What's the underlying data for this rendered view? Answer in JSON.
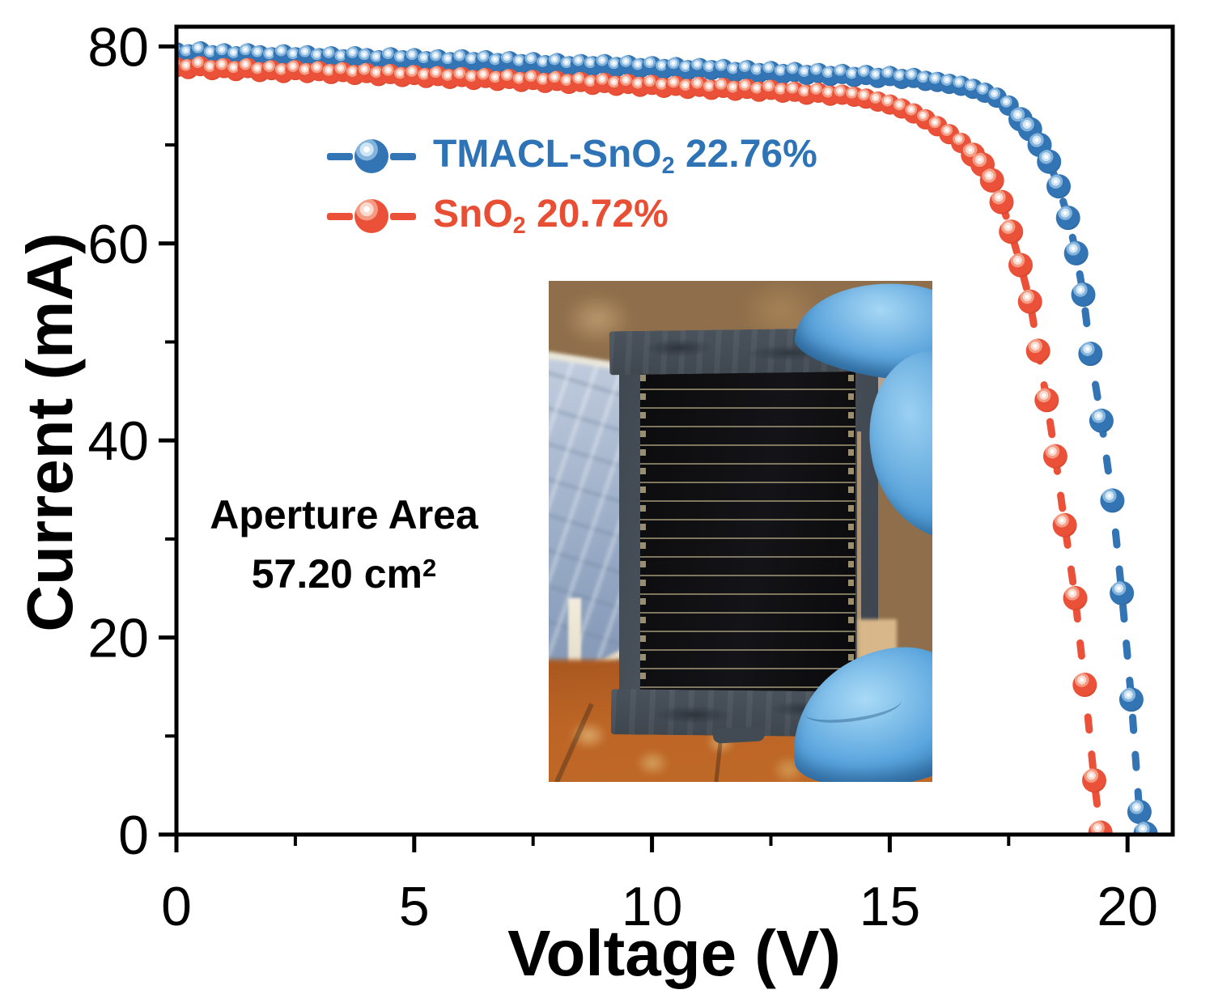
{
  "figure": {
    "background": "#ffffff",
    "axis_color": "#000000"
  },
  "legend": {
    "items": [
      {
        "pre": "TMACL-SnO",
        "sub": "2",
        "post": " 22.76%",
        "color": "#2d73b6"
      },
      {
        "pre": "SnO",
        "sub": "2",
        "post": " 20.72%",
        "color": "#e84e33"
      }
    ]
  },
  "annotation": {
    "line1": "Aperture Area",
    "line2_pre": "57.20 cm",
    "line2_sup": "2"
  },
  "chart_data": {
    "type": "line",
    "title": "",
    "xlabel": "Voltage (V)",
    "ylabel": "Current (mA)",
    "xlim": [
      0,
      20.95
    ],
    "ylim": [
      0,
      82
    ],
    "x_ticks": [
      0,
      5,
      10,
      15,
      20
    ],
    "x_minor_ticks": [
      2.5,
      7.5,
      12.5,
      17.5
    ],
    "y_ticks": [
      0,
      20,
      40,
      60,
      80
    ],
    "y_minor_ticks": [
      10,
      30,
      50,
      70
    ],
    "grid": false,
    "legend_position": "upper-left-inside",
    "series": [
      {
        "name": "TMACL-SnO2 22.76%",
        "color": "#3374b4",
        "shades": {
          "light2": "#cfe4f4",
          "light1": "#84b4dc",
          "base": "#3374b4",
          "dark": "#2a5c92"
        },
        "flat": [
          [
            0,
            79.4
          ],
          [
            0.25,
            79.2
          ],
          [
            0.5,
            79.5
          ],
          [
            0.75,
            79.1
          ],
          [
            1,
            79.3
          ],
          [
            1.25,
            79.0
          ],
          [
            1.5,
            79.3
          ],
          [
            1.75,
            79.1
          ],
          [
            2,
            78.9
          ],
          [
            2.25,
            79.2
          ],
          [
            2.5,
            78.9
          ],
          [
            2.75,
            79.1
          ],
          [
            3,
            78.8
          ],
          [
            3.25,
            79.0
          ],
          [
            3.5,
            78.7
          ],
          [
            3.75,
            79.0
          ],
          [
            4,
            78.8
          ],
          [
            4.25,
            78.6
          ],
          [
            4.5,
            78.9
          ],
          [
            4.75,
            78.6
          ],
          [
            5,
            78.8
          ],
          [
            5.25,
            78.5
          ],
          [
            5.5,
            78.7
          ],
          [
            5.75,
            78.4
          ],
          [
            6,
            78.7
          ],
          [
            6.25,
            78.4
          ],
          [
            6.5,
            78.6
          ],
          [
            6.75,
            78.3
          ],
          [
            7,
            78.5
          ],
          [
            7.25,
            78.2
          ],
          [
            7.5,
            78.4
          ],
          [
            7.75,
            78.1
          ],
          [
            8,
            78.3
          ],
          [
            8.25,
            78.0
          ],
          [
            8.5,
            78.2
          ],
          [
            8.75,
            78.0
          ],
          [
            9,
            78.2
          ],
          [
            9.25,
            77.9
          ],
          [
            9.5,
            78.1
          ],
          [
            9.75,
            77.8
          ],
          [
            10,
            78.0
          ],
          [
            10.25,
            77.7
          ],
          [
            10.5,
            77.9
          ],
          [
            10.75,
            77.6
          ],
          [
            11,
            77.8
          ],
          [
            11.25,
            77.6
          ],
          [
            11.5,
            77.7
          ],
          [
            11.75,
            77.4
          ],
          [
            12,
            77.6
          ],
          [
            12.25,
            77.3
          ],
          [
            12.5,
            77.5
          ],
          [
            12.75,
            77.2
          ],
          [
            13,
            77.4
          ],
          [
            13.25,
            77.1
          ],
          [
            13.5,
            77.3
          ],
          [
            13.75,
            77.0
          ],
          [
            14,
            77.2
          ],
          [
            14.25,
            76.9
          ],
          [
            14.5,
            77.1
          ],
          [
            14.75,
            76.8
          ],
          [
            15,
            77.0
          ],
          [
            15.25,
            76.7
          ],
          [
            15.5,
            76.8
          ],
          [
            15.75,
            76.5
          ],
          [
            16,
            76.4
          ],
          [
            16.25,
            76.2
          ],
          [
            16.5,
            76.0
          ],
          [
            16.75,
            75.7
          ],
          [
            17,
            75.3
          ],
          [
            17.25,
            74.8
          ],
          [
            17.5,
            74.0
          ]
        ],
        "knee": [
          [
            17.75,
            72.6
          ],
          [
            17.95,
            71.6
          ],
          [
            18.15,
            70.0
          ],
          [
            18.35,
            68.3
          ],
          [
            18.55,
            65.8
          ],
          [
            18.75,
            62.6
          ],
          [
            18.92,
            59.0
          ],
          [
            19.07,
            54.8
          ],
          [
            19.22,
            48.8
          ],
          [
            19.45,
            42.0
          ],
          [
            19.68,
            33.9
          ],
          [
            19.88,
            24.5
          ],
          [
            20.08,
            13.7
          ],
          [
            20.25,
            2.3
          ],
          [
            20.38,
            0.1
          ]
        ]
      },
      {
        "name": "SnO2 20.72%",
        "color": "#eb5138",
        "shades": {
          "light2": "#fcdacf",
          "light1": "#f49b83",
          "base": "#eb5138",
          "dark": "#c23e24"
        },
        "flat": [
          [
            0,
            77.9
          ],
          [
            0.25,
            77.7
          ],
          [
            0.5,
            78.0
          ],
          [
            0.75,
            77.6
          ],
          [
            1,
            77.8
          ],
          [
            1.25,
            77.5
          ],
          [
            1.5,
            77.8
          ],
          [
            1.75,
            77.4
          ],
          [
            2,
            77.6
          ],
          [
            2.25,
            77.3
          ],
          [
            2.5,
            77.6
          ],
          [
            2.75,
            77.3
          ],
          [
            3,
            77.5
          ],
          [
            3.25,
            77.2
          ],
          [
            3.5,
            77.4
          ],
          [
            3.75,
            77.1
          ],
          [
            4,
            77.3
          ],
          [
            4.25,
            77.0
          ],
          [
            4.5,
            77.2
          ],
          [
            4.75,
            76.9
          ],
          [
            5,
            77.1
          ],
          [
            5.25,
            76.8
          ],
          [
            5.5,
            77.0
          ],
          [
            5.75,
            76.7
          ],
          [
            6,
            76.9
          ],
          [
            6.25,
            76.6
          ],
          [
            6.5,
            76.8
          ],
          [
            6.75,
            76.5
          ],
          [
            7,
            76.7
          ],
          [
            7.25,
            76.4
          ],
          [
            7.5,
            76.6
          ],
          [
            7.75,
            76.3
          ],
          [
            8,
            76.5
          ],
          [
            8.25,
            76.2
          ],
          [
            8.5,
            76.4
          ],
          [
            8.75,
            76.1
          ],
          [
            9,
            76.3
          ],
          [
            9.25,
            76.0
          ],
          [
            9.5,
            76.2
          ],
          [
            9.75,
            75.9
          ],
          [
            10,
            76.1
          ],
          [
            10.25,
            75.8
          ],
          [
            10.5,
            76.0
          ],
          [
            10.75,
            75.7
          ],
          [
            11,
            75.9
          ],
          [
            11.25,
            75.6
          ],
          [
            11.5,
            75.8
          ],
          [
            11.75,
            75.5
          ],
          [
            12,
            75.7
          ],
          [
            12.25,
            75.4
          ],
          [
            12.5,
            75.6
          ],
          [
            12.75,
            75.3
          ],
          [
            13,
            75.4
          ],
          [
            13.25,
            75.1
          ],
          [
            13.5,
            75.3
          ],
          [
            13.75,
            75.0
          ],
          [
            14,
            75.1
          ],
          [
            14.25,
            74.9
          ],
          [
            14.5,
            74.7
          ],
          [
            14.75,
            74.4
          ],
          [
            15,
            74.1
          ],
          [
            15.25,
            73.7
          ],
          [
            15.5,
            73.2
          ],
          [
            15.75,
            72.6
          ],
          [
            16,
            71.9
          ],
          [
            16.25,
            71.1
          ],
          [
            16.5,
            70.2
          ]
        ],
        "knee": [
          [
            16.75,
            69.0
          ],
          [
            16.95,
            68.0
          ],
          [
            17.15,
            66.4
          ],
          [
            17.35,
            64.2
          ],
          [
            17.55,
            61.2
          ],
          [
            17.75,
            57.8
          ],
          [
            17.95,
            54.1
          ],
          [
            18.12,
            49.1
          ],
          [
            18.3,
            44.1
          ],
          [
            18.48,
            38.4
          ],
          [
            18.68,
            31.4
          ],
          [
            18.9,
            24.0
          ],
          [
            19.1,
            15.2
          ],
          [
            19.3,
            5.5
          ],
          [
            19.43,
            0.2
          ]
        ]
      }
    ]
  }
}
